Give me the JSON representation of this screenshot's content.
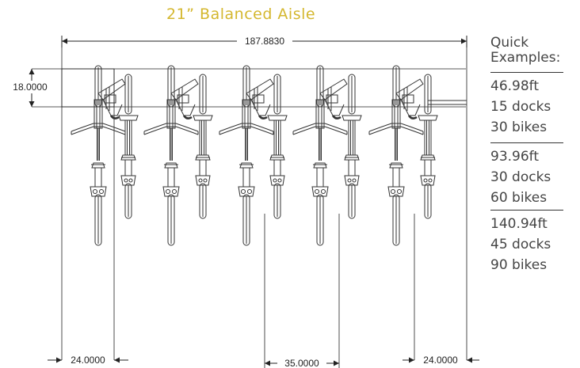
{
  "title": "21” Balanced Aisle",
  "dimensions": {
    "total_width": "187.8830",
    "depth": "18.0000",
    "left_end": "24.0000",
    "spacing": "35.0000",
    "right_end": "24.0000"
  },
  "examples": {
    "heading_line1": "Quick",
    "heading_line2": "Examples:",
    "groups": [
      {
        "length": "46.98ft",
        "docks": "15 docks",
        "bikes": "30 bikes"
      },
      {
        "length": "93.96ft",
        "docks": "30 docks",
        "bikes": "60 bikes"
      },
      {
        "length": "140.94ft",
        "docks": "45 docks",
        "bikes": "90 bikes"
      }
    ]
  },
  "colors": {
    "title": "#d4b72e",
    "line": "#222222",
    "bike": "#333333"
  }
}
